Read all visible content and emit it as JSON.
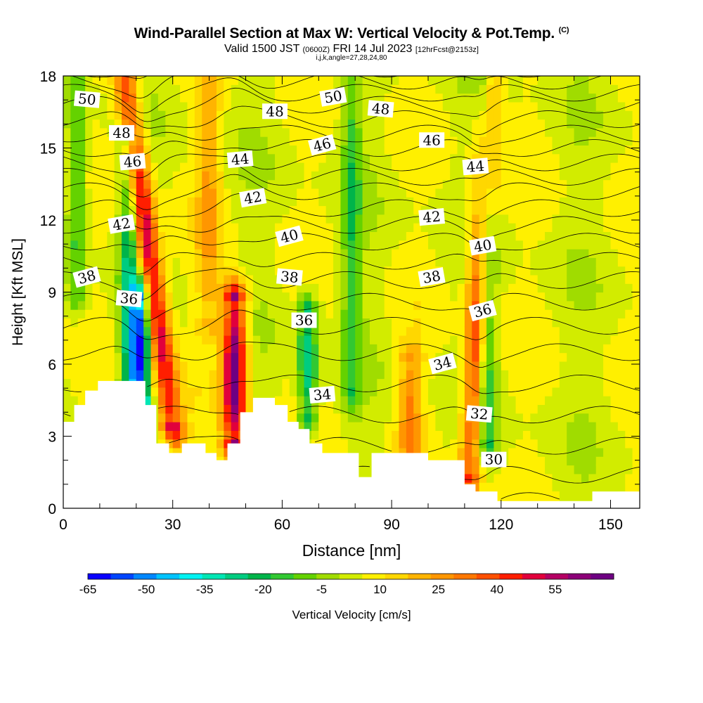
{
  "title": {
    "main": "Wind-Parallel Section at Max W: Vertical Velocity & Pot.Temp.",
    "copyright": "(C)",
    "valid_prefix": "Valid 1500 JST",
    "valid_utc": "(0600Z)",
    "valid_date": "FRI 14 Jul 2023",
    "forecast": "[12hrFcst@2153z]",
    "indices": "i,j,k,angle=27,28,24,80"
  },
  "colors": {
    "palette": [
      "#0a00ff",
      "#0045ff",
      "#0087ff",
      "#00c3ff",
      "#00f2f2",
      "#00e6b4",
      "#00cc80",
      "#00b44a",
      "#32c832",
      "#64d200",
      "#a0dc00",
      "#d2ec00",
      "#fff000",
      "#ffd700",
      "#ffb400",
      "#ff9600",
      "#ff7800",
      "#ff5000",
      "#ff1e00",
      "#e1003c",
      "#b40064",
      "#8c0078",
      "#6e0082"
    ],
    "terrain": "#ffffff",
    "contour": "#000000"
  },
  "chart_data": {
    "type": "heatmap",
    "xlabel": "Distance [nm]",
    "ylabel": "Height [Kft MSL]",
    "xlim": [
      0,
      158
    ],
    "ylim": [
      0,
      18
    ],
    "x_ticks": [
      "0",
      "30",
      "60",
      "90",
      "120",
      "150"
    ],
    "x_tick_values": [
      0,
      30,
      60,
      90,
      120,
      150
    ],
    "y_ticks": [
      "0",
      "3",
      "6",
      "9",
      "12",
      "15",
      "18"
    ],
    "y_tick_values": [
      0,
      3,
      6,
      9,
      12,
      15,
      18
    ],
    "colorbar": {
      "label": "Vertical Velocity [cm/s]",
      "min": -65,
      "max": 70,
      "step": 6,
      "tick_labels": [
        "-65",
        "-50",
        "-35",
        "-20",
        "-5",
        "10",
        "25",
        "40",
        "55"
      ],
      "tick_values": [
        -65,
        -50,
        -35,
        -20,
        -5,
        10,
        25,
        40,
        55
      ]
    },
    "vertical_velocity_features": [
      {
        "x": 24,
        "z_bottom": 3.5,
        "z_top": 18,
        "peak_cms": 52,
        "sign": "updraft"
      },
      {
        "x": 21,
        "z_bottom": 4.5,
        "z_top": 8.5,
        "peak_cms": -60,
        "sign": "downdraft"
      },
      {
        "x": 18,
        "z_bottom": 3,
        "z_top": 15,
        "peak_cms": -30,
        "sign": "downdraft"
      },
      {
        "x": 47,
        "z_bottom": 3,
        "z_top": 8.5,
        "peak_cms": 65,
        "sign": "updraft"
      },
      {
        "x": 67,
        "z_bottom": 4,
        "z_top": 8,
        "peak_cms": -35,
        "sign": "downdraft"
      },
      {
        "x": 113,
        "z_bottom": 1.5,
        "z_top": 18,
        "peak_cms": 45,
        "sign": "updraft"
      },
      {
        "x": 116,
        "z_bottom": 3,
        "z_top": 18,
        "peak_cms": -32,
        "sign": "downdraft"
      },
      {
        "x": 4,
        "z_bottom": 9,
        "z_top": 18,
        "peak_cms": -22,
        "sign": "downdraft"
      },
      {
        "x": 40,
        "z_bottom": 8,
        "z_top": 18,
        "peak_cms": 18,
        "sign": "updraft"
      },
      {
        "x": 79,
        "z_bottom": 5,
        "z_top": 18,
        "peak_cms": -20,
        "sign": "downdraft"
      },
      {
        "x": 95,
        "z_bottom": 2,
        "z_top": 6,
        "peak_cms": 25,
        "sign": "updraft"
      }
    ],
    "terrain_profile": [
      {
        "x": 0,
        "z": 3.6
      },
      {
        "x": 3,
        "z": 3.6
      },
      {
        "x": 3,
        "z": 4.3
      },
      {
        "x": 6,
        "z": 4.3
      },
      {
        "x": 6,
        "z": 4.9
      },
      {
        "x": 9.5,
        "z": 4.9
      },
      {
        "x": 9.5,
        "z": 5.3
      },
      {
        "x": 22.5,
        "z": 5.3
      },
      {
        "x": 22.5,
        "z": 4.3
      },
      {
        "x": 25.5,
        "z": 4.3
      },
      {
        "x": 25.5,
        "z": 2.7
      },
      {
        "x": 29,
        "z": 2.7
      },
      {
        "x": 29,
        "z": 2.3
      },
      {
        "x": 32.5,
        "z": 2.3
      },
      {
        "x": 32.5,
        "z": 2.7
      },
      {
        "x": 39,
        "z": 2.7
      },
      {
        "x": 39,
        "z": 2.3
      },
      {
        "x": 42,
        "z": 2.3
      },
      {
        "x": 42,
        "z": 2.0
      },
      {
        "x": 45,
        "z": 2.0
      },
      {
        "x": 45,
        "z": 2.7
      },
      {
        "x": 48.5,
        "z": 2.7
      },
      {
        "x": 48.5,
        "z": 4.0
      },
      {
        "x": 52,
        "z": 4.0
      },
      {
        "x": 52,
        "z": 4.6
      },
      {
        "x": 58,
        "z": 4.6
      },
      {
        "x": 58,
        "z": 4.3
      },
      {
        "x": 61.5,
        "z": 4.3
      },
      {
        "x": 61.5,
        "z": 3.6
      },
      {
        "x": 64.5,
        "z": 3.6
      },
      {
        "x": 64.5,
        "z": 3.3
      },
      {
        "x": 67.5,
        "z": 3.3
      },
      {
        "x": 67.5,
        "z": 2.7
      },
      {
        "x": 71,
        "z": 2.7
      },
      {
        "x": 71,
        "z": 2.3
      },
      {
        "x": 81,
        "z": 2.3
      },
      {
        "x": 81,
        "z": 1.3
      },
      {
        "x": 84.5,
        "z": 1.3
      },
      {
        "x": 84.5,
        "z": 2.3
      },
      {
        "x": 100,
        "z": 2.3
      },
      {
        "x": 100,
        "z": 2.0
      },
      {
        "x": 110,
        "z": 2.0
      },
      {
        "x": 110,
        "z": 1.0
      },
      {
        "x": 113,
        "z": 1.0
      },
      {
        "x": 113,
        "z": 0.7
      },
      {
        "x": 119,
        "z": 0.7
      },
      {
        "x": 119,
        "z": 0.3
      },
      {
        "x": 145,
        "z": 0.3
      },
      {
        "x": 145,
        "z": 0.7
      },
      {
        "x": 158,
        "z": 0.7
      }
    ],
    "potential_temperature": {
      "label_values": [
        "50",
        "48",
        "46",
        "42",
        "38",
        "36",
        "48",
        "44",
        "42",
        "40",
        "38",
        "36",
        "34",
        "50",
        "46",
        "48",
        "46",
        "42",
        "38",
        "34",
        "32",
        "30",
        "44",
        "40",
        "36"
      ],
      "label_positions_data": [
        {
          "v": "50",
          "x": 6.5,
          "z": 17.0
        },
        {
          "v": "48",
          "x": 16,
          "z": 15.6
        },
        {
          "v": "46",
          "x": 19,
          "z": 14.4
        },
        {
          "v": "42",
          "x": 16,
          "z": 11.8
        },
        {
          "v": "38",
          "x": 6.5,
          "z": 9.6
        },
        {
          "v": "36",
          "x": 18,
          "z": 8.7
        },
        {
          "v": "48",
          "x": 58,
          "z": 16.5
        },
        {
          "v": "44",
          "x": 48.5,
          "z": 14.5
        },
        {
          "v": "42",
          "x": 52,
          "z": 12.9
        },
        {
          "v": "40",
          "x": 62,
          "z": 11.3
        },
        {
          "v": "38",
          "x": 62,
          "z": 9.6
        },
        {
          "v": "36",
          "x": 66,
          "z": 7.8
        },
        {
          "v": "34",
          "x": 71,
          "z": 4.7
        },
        {
          "v": "50",
          "x": 74,
          "z": 17.1
        },
        {
          "v": "46",
          "x": 71,
          "z": 15.1
        },
        {
          "v": "48",
          "x": 87,
          "z": 16.6
        },
        {
          "v": "46",
          "x": 101,
          "z": 15.3
        },
        {
          "v": "42",
          "x": 101,
          "z": 12.1
        },
        {
          "v": "38",
          "x": 101,
          "z": 9.6
        },
        {
          "v": "34",
          "x": 104,
          "z": 6.0
        },
        {
          "v": "32",
          "x": 114,
          "z": 3.9
        },
        {
          "v": "30",
          "x": 118,
          "z": 2.0
        },
        {
          "v": "44",
          "x": 113,
          "z": 14.2
        },
        {
          "v": "40",
          "x": 115,
          "z": 10.9
        },
        {
          "v": "36",
          "x": 115,
          "z": 8.2
        }
      ],
      "contour_levels_K": [
        29,
        30,
        31,
        32,
        33,
        34,
        35,
        36,
        37,
        38,
        39,
        40,
        41,
        42,
        43,
        44,
        45,
        46,
        47,
        48,
        49,
        50,
        51
      ],
      "surface_level_heights_kft": [
        0.3,
        1.4,
        2.6,
        3.9,
        5.2,
        6.5,
        7.6,
        8.6,
        9.5,
        10.3,
        11.1,
        11.8,
        12.5,
        13.2,
        13.8,
        14.4,
        15.0,
        15.6,
        16.2,
        16.8,
        17.3,
        17.8,
        18.3
      ]
    }
  }
}
